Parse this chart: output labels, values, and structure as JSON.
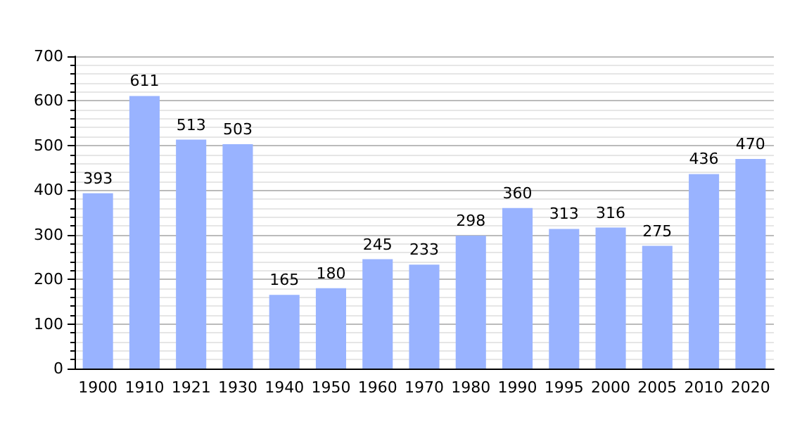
{
  "chart_data": {
    "type": "bar",
    "categories": [
      "1900",
      "1910",
      "1921",
      "1930",
      "1940",
      "1950",
      "1960",
      "1970",
      "1980",
      "1990",
      "1995",
      "2000",
      "2005",
      "2010",
      "2020"
    ],
    "values": [
      393,
      611,
      513,
      503,
      165,
      180,
      245,
      233,
      298,
      360,
      313,
      316,
      275,
      436,
      470
    ],
    "color": "#99b3ff",
    "ylim": [
      0,
      700
    ],
    "yticks": [
      0,
      100,
      200,
      300,
      400,
      500,
      600,
      700
    ],
    "grid": "y",
    "data_labels": true
  }
}
